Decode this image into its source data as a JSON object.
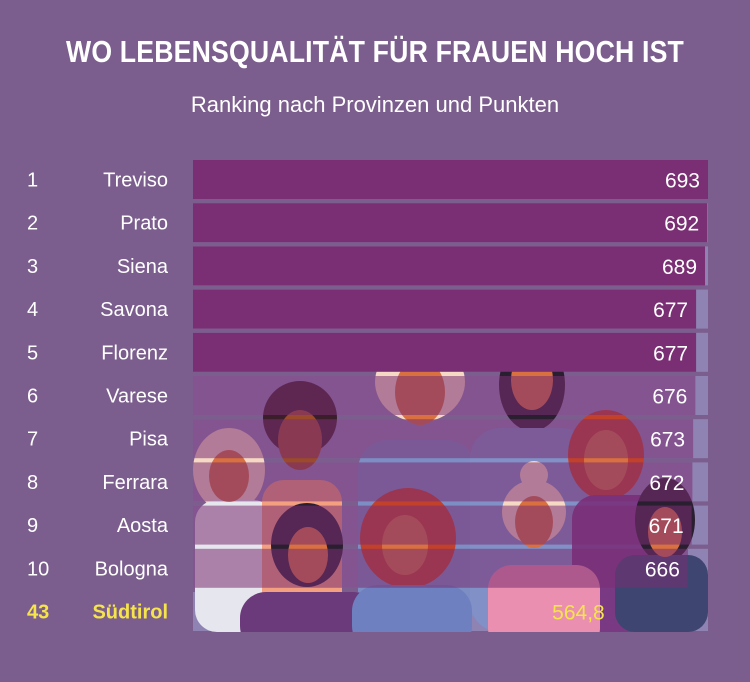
{
  "title": "WO LEBENSQUALITÄT FÜR FRAUEN HOCH IST",
  "subtitle": "Ranking nach Provinzen und Punkten",
  "colors": {
    "background": "#7b5e8d",
    "bar": "#7a2e73",
    "track": "#8f83b3",
    "highlight_text": "#f5e44a"
  },
  "chart_data": {
    "type": "bar",
    "orientation": "horizontal",
    "ranks": [
      "1",
      "2",
      "3",
      "4",
      "5",
      "6",
      "7",
      "8",
      "9",
      "10",
      "43"
    ],
    "categories": [
      "Treviso",
      "Prato",
      "Siena",
      "Savona",
      "Florenz",
      "Varese",
      "Pisa",
      "Ferrara",
      "Aosta",
      "Bologna",
      "Südtirol"
    ],
    "values": [
      693,
      692,
      689,
      677,
      677,
      676,
      673,
      672,
      671,
      666,
      564.8
    ],
    "value_labels": [
      "693",
      "692",
      "689",
      "677",
      "677",
      "676",
      "673",
      "672",
      "671",
      "666",
      "564,8"
    ],
    "highlight": "Südtirol",
    "xlim": [
      0,
      693
    ]
  }
}
